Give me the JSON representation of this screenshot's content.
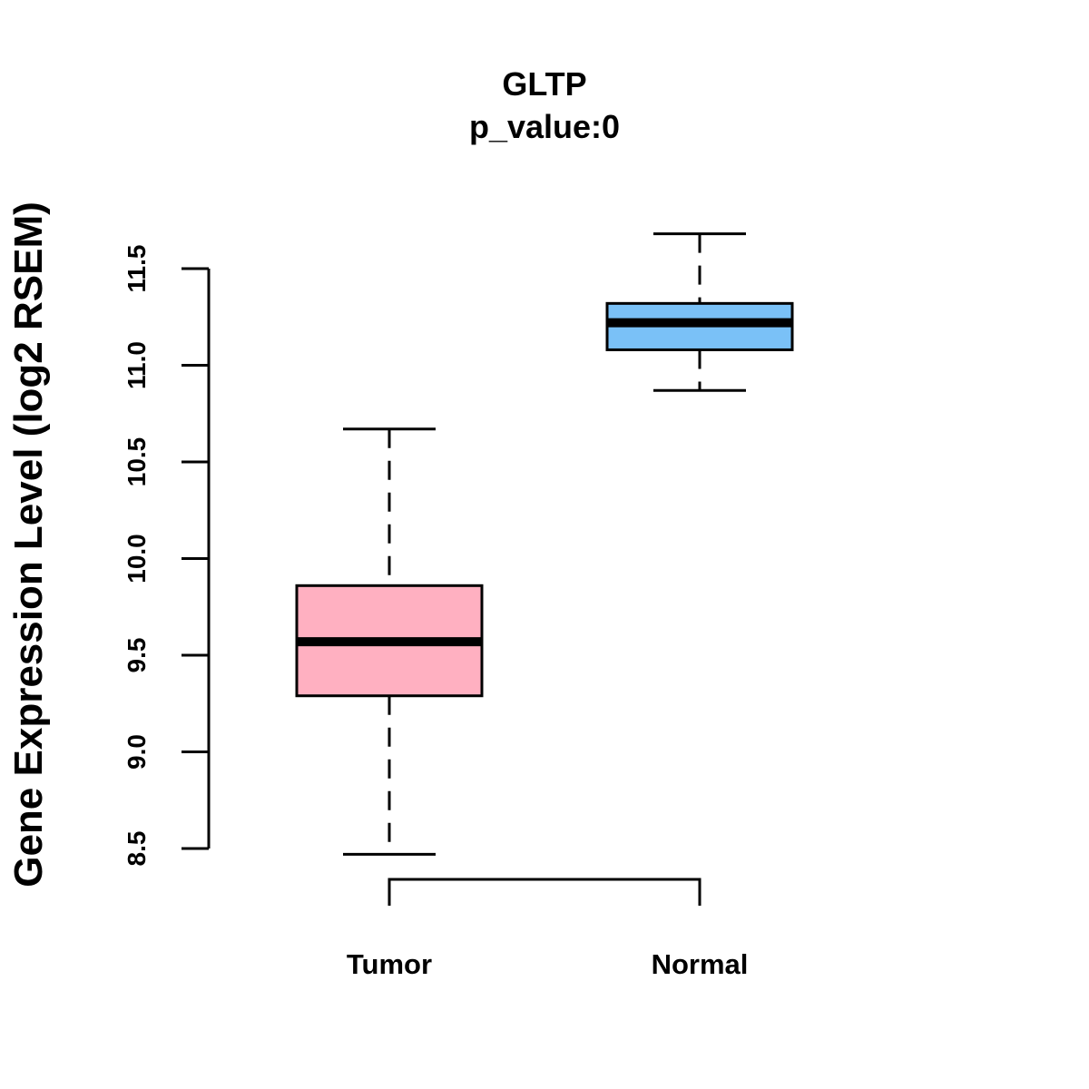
{
  "chart_data": {
    "type": "boxplot",
    "title": "GLTP",
    "subtitle": "p_value:0",
    "xlabel": "",
    "ylabel": "Gene Expression Level (log2 RSEM)",
    "ylim": [
      8.5,
      11.5
    ],
    "yticks": [
      8.5,
      9.0,
      9.5,
      10.0,
      10.5,
      11.0,
      11.5
    ],
    "ytick_labels": [
      "8.5",
      "9.0",
      "9.5",
      "10.0",
      "10.5",
      "11.0",
      "11.5"
    ],
    "grid": false,
    "legend": "none",
    "categories": [
      "Tumor",
      "Normal"
    ],
    "boxes": [
      {
        "name": "Tumor",
        "whisker_low": 8.47,
        "q1": 9.29,
        "median": 9.57,
        "q3": 9.86,
        "whisker_high": 10.67,
        "color": "#FFB0C1"
      },
      {
        "name": "Normal",
        "whisker_low": 10.87,
        "q1": 11.08,
        "median": 11.22,
        "q3": 11.32,
        "whisker_high": 11.68,
        "color": "#7AC1F7"
      }
    ],
    "comparison_bracket": {
      "from": "Tumor",
      "to": "Normal"
    }
  }
}
